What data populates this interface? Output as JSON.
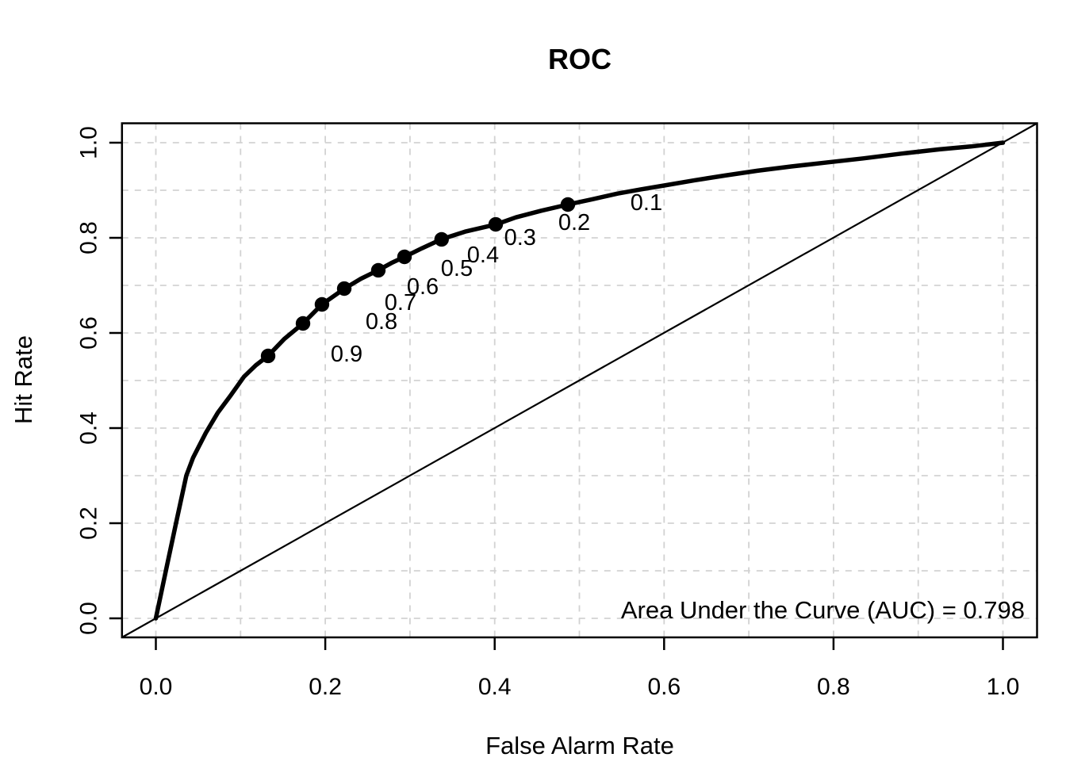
{
  "figure": {
    "background": "#ffffff"
  },
  "chart_data": {
    "type": "line",
    "title": "ROC",
    "xlabel": "False Alarm Rate",
    "ylabel": "Hit Rate",
    "xlim": [
      0,
      1
    ],
    "ylim": [
      0,
      1
    ],
    "axis_ticks": {
      "values": [
        0.0,
        0.2,
        0.4,
        0.6,
        0.8,
        1.0
      ],
      "labels": [
        "0.0",
        "0.2",
        "0.4",
        "0.6",
        "0.8",
        "1.0"
      ]
    },
    "grid": {
      "on": true,
      "step": 0.1,
      "color": "#d2d2d2",
      "style": "dashed"
    },
    "diagonal_reference_line": {
      "from": [
        0,
        0
      ],
      "to": [
        1,
        1
      ],
      "color": "#000000"
    },
    "series": [
      {
        "name": "ROC curve",
        "color": "#000000",
        "x": [
          0.0,
          0.013,
          0.025,
          0.036,
          0.044,
          0.059,
          0.073,
          0.088,
          0.104,
          0.118,
          0.1325,
          0.152,
          0.1737,
          0.1961,
          0.2224,
          0.242,
          0.2626,
          0.278,
          0.2935,
          0.314,
          0.3373,
          0.365,
          0.4012,
          0.425,
          0.455,
          0.4864,
          0.515,
          0.545,
          0.573,
          0.6,
          0.636,
          0.672,
          0.71,
          0.75,
          0.79,
          0.835,
          0.88,
          0.925,
          0.962,
          1.0
        ],
        "y": [
          0.0,
          0.11,
          0.21,
          0.3,
          0.338,
          0.39,
          0.432,
          0.468,
          0.508,
          0.532,
          0.552,
          0.588,
          0.62,
          0.66,
          0.693,
          0.714,
          0.732,
          0.747,
          0.76,
          0.778,
          0.797,
          0.813,
          0.828,
          0.843,
          0.857,
          0.87,
          0.881,
          0.893,
          0.902,
          0.91,
          0.921,
          0.931,
          0.941,
          0.95,
          0.958,
          0.967,
          0.977,
          0.986,
          0.992,
          1.0
        ]
      }
    ],
    "threshold_points": [
      {
        "label": "0.9",
        "x": 0.1325,
        "y": 0.5517
      },
      {
        "label": "0.8",
        "x": 0.1737,
        "y": 0.62
      },
      {
        "label": "0.7",
        "x": 0.1961,
        "y": 0.66
      },
      {
        "label": "0.6",
        "x": 0.2224,
        "y": 0.6933
      },
      {
        "label": "0.5",
        "x": 0.2626,
        "y": 0.7317
      },
      {
        "label": "0.4",
        "x": 0.2935,
        "y": 0.76
      },
      {
        "label": "0.3",
        "x": 0.3373,
        "y": 0.7967
      },
      {
        "label": "0.2",
        "x": 0.4012,
        "y": 0.8283
      },
      {
        "label": "0.1",
        "x": 0.4864,
        "y": 0.87
      }
    ],
    "annotation": "Area Under the Curve (AUC) = 0.798",
    "auc": 0.798,
    "legend": {
      "shown": false
    }
  }
}
